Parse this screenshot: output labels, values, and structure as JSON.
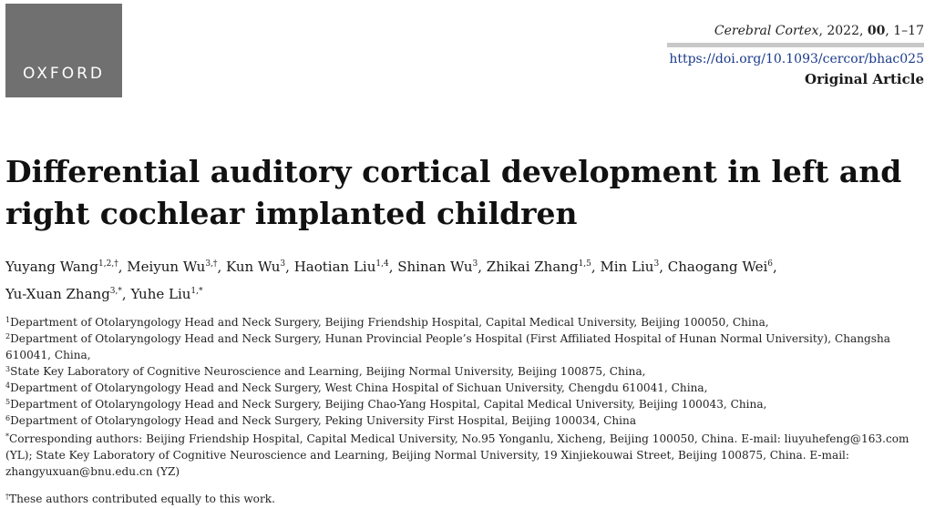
{
  "header": {
    "logo_text": "OXFORD",
    "journal_name": "Cerebral Cortex",
    "journal_year": ", 2022, ",
    "journal_volume": "00",
    "journal_pages": ", 1–17",
    "doi": "https://doi.org/10.1093/cercor/bhac025",
    "article_type": "Original Article"
  },
  "title": "Differential auditory cortical development in left and right cochlear implanted children",
  "authors": [
    {
      "name": "Yuyang Wang",
      "sup": "1,2,†"
    },
    {
      "name": "Meiyun Wu",
      "sup": "3,†"
    },
    {
      "name": "Kun Wu",
      "sup": "3"
    },
    {
      "name": "Haotian Liu",
      "sup": "1,4"
    },
    {
      "name": "Shinan Wu",
      "sup": "3"
    },
    {
      "name": "Zhikai Zhang",
      "sup": "1,5"
    },
    {
      "name": "Min Liu",
      "sup": "3"
    },
    {
      "name": "Chaogang Wei",
      "sup": "6"
    },
    {
      "name": "Yu-Xuan Zhang",
      "sup": "3,*"
    },
    {
      "name": "Yuhe Liu",
      "sup": "1,*"
    }
  ],
  "affiliations": [
    {
      "sup": "1",
      "text": "Department of Otolaryngology Head and Neck Surgery, Beijing Friendship Hospital, Capital Medical University, Beijing 100050, China,"
    },
    {
      "sup": "2",
      "text": "Department of Otolaryngology Head and Neck Surgery, Hunan Provincial People’s Hospital (First Affiliated Hospital of Hunan Normal University), Changsha 610041, China,"
    },
    {
      "sup": "3",
      "text": "State Key Laboratory of Cognitive Neuroscience and Learning, Beijing Normal University, Beijing 100875, China,"
    },
    {
      "sup": "4",
      "text": "Department of Otolaryngology Head and Neck Surgery, West China Hospital of Sichuan University, Chengdu 610041, China,"
    },
    {
      "sup": "5",
      "text": "Department of Otolaryngology Head and Neck Surgery, Beijing Chao-Yang Hospital, Capital Medical University, Beijing 100043, China,"
    },
    {
      "sup": "6",
      "text": "Department of Otolaryngology Head and Neck Surgery, Peking University First Hospital, Beijing 100034, China"
    }
  ],
  "corresponding": {
    "sup": "*",
    "text": "Corresponding authors: Beijing Friendship Hospital, Capital Medical University, No.95 Yonganlu, Xicheng, Beijing 100050, China. E-mail: liuyuhefeng@163.com (YL); State Key Laboratory of Cognitive Neuroscience and Learning, Beijing Normal University, 19 Xinjiekouwai Street, Beijing 100875, China. E-mail: zhangyuxuan@bnu.edu.cn (YZ)"
  },
  "contribution": {
    "sup": "†",
    "text": "These authors contributed equally to this work."
  },
  "colors": {
    "logo_bg": "#707070",
    "doi_link": "#1a3a8a",
    "rule": "#c8c8c8"
  }
}
